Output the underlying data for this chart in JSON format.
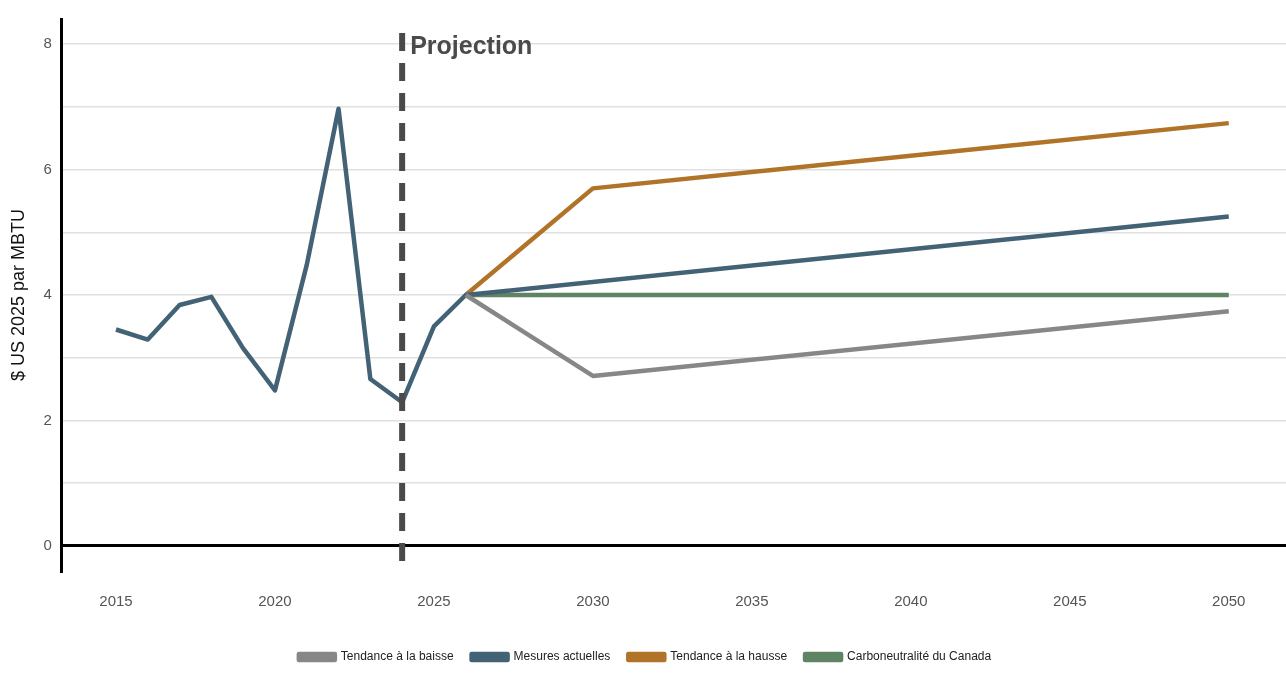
{
  "chart_data": {
    "type": "line",
    "ylabel": "$ US 2025 par MBTU",
    "xlim": [
      2013.3,
      2051.8
    ],
    "xticks": [
      2015,
      2020,
      2025,
      2030,
      2035,
      2040,
      2045,
      2050
    ],
    "ylim": [
      -0.4,
      8.4
    ],
    "yticks": [
      0,
      {
        "value": 1,
        "label": null
      },
      2,
      {
        "value": 3,
        "label": null
      },
      4,
      {
        "value": 5,
        "label": null
      },
      6,
      {
        "value": 7,
        "label": null
      },
      8
    ],
    "series": [
      {
        "name": "Tendance à la baisse",
        "color": "#878787",
        "x": [
          2026,
          2030,
          2050
        ],
        "values": [
          4.0,
          2.71,
          3.74
        ]
      },
      {
        "name": "Mesures actuelles",
        "color": "#436276",
        "x": [
          2015,
          2016,
          2017,
          2018,
          2019,
          2020,
          2021,
          2022,
          2023,
          2024,
          2025,
          2026,
          2050
        ],
        "values": [
          3.45,
          3.29,
          3.84,
          3.97,
          3.15,
          2.48,
          4.48,
          6.97,
          2.66,
          2.29,
          3.5,
          4.0,
          5.25
        ]
      },
      {
        "name": "Tendance à la hausse",
        "color": "#b07328",
        "x": [
          2026,
          2030,
          2050
        ],
        "values": [
          4.0,
          5.7,
          6.74
        ]
      },
      {
        "name": "Carboneutralité du Canada",
        "color": "#5e8464",
        "x": [
          2026,
          2050
        ],
        "values": [
          4.0,
          4.0
        ]
      }
    ],
    "ref_lines": [
      {
        "axis": "x",
        "value": 2024,
        "label": "Projection",
        "color": "#4a4a4a",
        "line_style": "dashed"
      }
    ],
    "grid": "y",
    "legend": "bottom",
    "marker": "none",
    "line_style": "solid"
  }
}
